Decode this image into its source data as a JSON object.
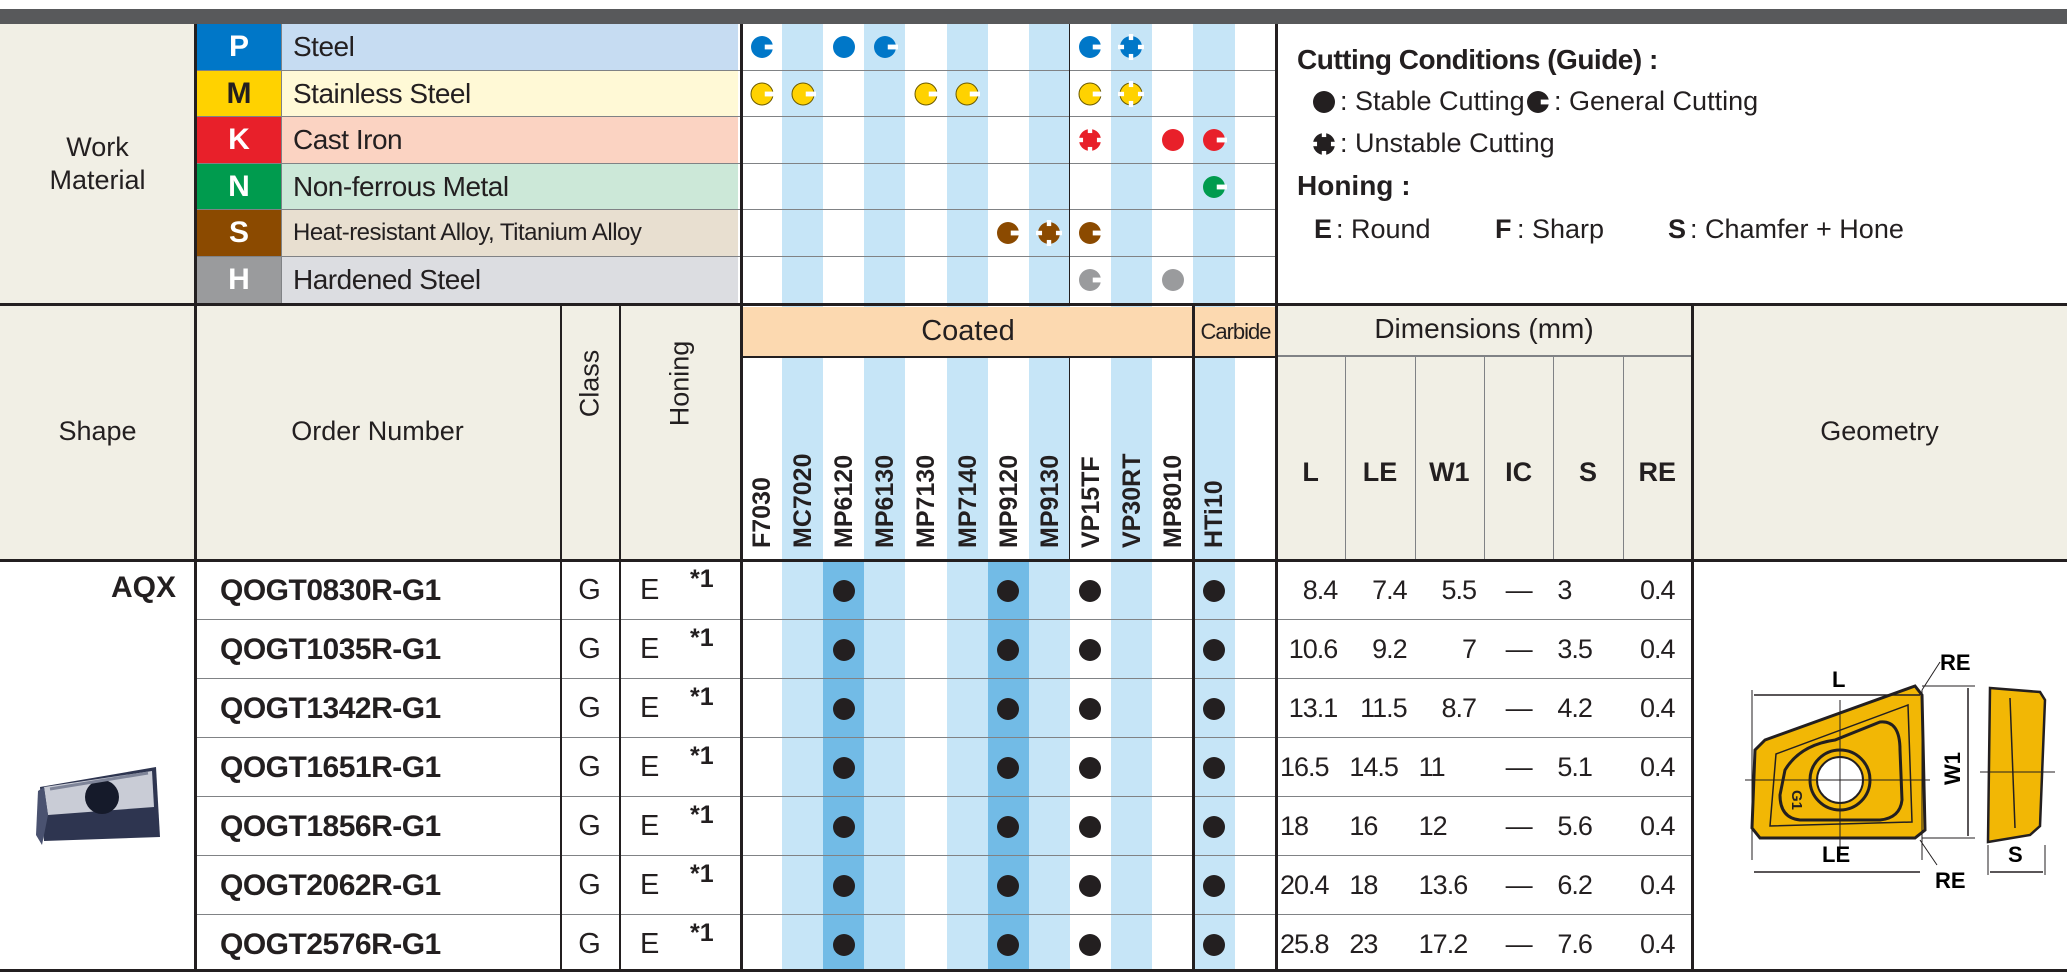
{
  "colors": {
    "stripe": "#c6e5f7",
    "highlight": "#72bbe6",
    "header_orange": "#fcd9b0",
    "cream": "#f1efe5",
    "insert_gold": "#f2b705"
  },
  "work_material": {
    "label_line1": "Work",
    "label_line2": "Material",
    "rows": [
      {
        "letter": "P",
        "name": "Steel",
        "color": "#0077c8",
        "bg": "#c6dcf2",
        "text_color": "#ffffff",
        "marks": [
          "general",
          "",
          "stable",
          "general",
          "",
          "",
          "",
          "",
          "general",
          "unstable",
          "",
          "",
          ""
        ]
      },
      {
        "letter": "M",
        "name": "Stainless Steel",
        "color": "#ffd200",
        "bg": "#fff9d6",
        "text_color": "#231f20",
        "marks": [
          "general",
          "general",
          "",
          "",
          "general",
          "general",
          "",
          "",
          "general",
          "unstable",
          "",
          "",
          ""
        ]
      },
      {
        "letter": "K",
        "name": "Cast Iron",
        "color": "#e8202a",
        "bg": "#fbd3c2",
        "text_color": "#ffffff",
        "marks": [
          "",
          "",
          "",
          "",
          "",
          "",
          "",
          "",
          "unstable",
          "",
          "stable",
          "general",
          ""
        ]
      },
      {
        "letter": "N",
        "name": "Non-ferrous Metal",
        "color": "#009b4e",
        "bg": "#cce8d8",
        "text_color": "#ffffff",
        "marks": [
          "",
          "",
          "",
          "",
          "",
          "",
          "",
          "",
          "",
          "",
          "",
          "general",
          ""
        ]
      },
      {
        "letter": "S",
        "name": "Heat-resistant Alloy, Titanium Alloy",
        "color": "#8b4a00",
        "bg": "#e8dfd0",
        "text_color": "#ffffff",
        "marks": [
          "",
          "",
          "",
          "",
          "",
          "",
          "general",
          "unstable",
          "general",
          "",
          "",
          "",
          ""
        ]
      },
      {
        "letter": "H",
        "name": "Hardened Steel",
        "color": "#9a9b9d",
        "bg": "#dcdde1",
        "text_color": "#ffffff",
        "marks": [
          "",
          "",
          "",
          "",
          "",
          "",
          "",
          "",
          "general",
          "",
          "stable",
          "",
          ""
        ]
      }
    ]
  },
  "legend": {
    "title": "Cutting Conditions (Guide) :",
    "stable": ": Stable Cutting",
    "general": ": General Cutting",
    "unstable": ": Unstable Cutting",
    "honing_title": "Honing :",
    "honing": [
      {
        "code": "E",
        "label": ": Round"
      },
      {
        "code": "F",
        "label": ": Sharp"
      },
      {
        "code": "S",
        "label": ": Chamfer + Hone"
      }
    ]
  },
  "header": {
    "shape": "Shape",
    "order_number": "Order Number",
    "class": "Class",
    "honing": "Honing",
    "coated": "Coated",
    "carbide": "Carbide",
    "dimensions": "Dimensions (mm)",
    "geometry": "Geometry",
    "dim_cols": [
      "L",
      "LE",
      "W1",
      "IC",
      "S",
      "RE"
    ]
  },
  "grades": [
    "F7030",
    "MC7020",
    "MP6120",
    "MP6130",
    "MP7130",
    "MP7140",
    "MP9120",
    "MP9130",
    "VP15TF",
    "VP30RT",
    "MP8010",
    "HTi10",
    ""
  ],
  "shape_name": "AQX",
  "products": [
    {
      "order": "QOGT0830R-G1",
      "class": "G",
      "honing": "E",
      "note": "*1",
      "dims": [
        "8.4",
        "7.4",
        "5.5",
        "—",
        "3",
        "0.4"
      ]
    },
    {
      "order": "QOGT1035R-G1",
      "class": "G",
      "honing": "E",
      "note": "*1",
      "dims": [
        "10.6",
        "9.2",
        "7",
        "—",
        "3.5",
        "0.4"
      ]
    },
    {
      "order": "QOGT1342R-G1",
      "class": "G",
      "honing": "E",
      "note": "*1",
      "dims": [
        "13.1",
        "11.5",
        "8.7",
        "—",
        "4.2",
        "0.4"
      ]
    },
    {
      "order": "QOGT1651R-G1",
      "class": "G",
      "honing": "E",
      "note": "*1",
      "dims": [
        "16.5",
        "14.5",
        "11",
        "—",
        "5.1",
        "0.4"
      ]
    },
    {
      "order": "QOGT1856R-G1",
      "class": "G",
      "honing": "E",
      "note": "*1",
      "dims": [
        "18",
        "16",
        "12",
        "—",
        "5.6",
        "0.4"
      ]
    },
    {
      "order": "QOGT2062R-G1",
      "class": "G",
      "honing": "E",
      "note": "*1",
      "dims": [
        "20.4",
        "18",
        "13.6",
        "—",
        "6.2",
        "0.4"
      ]
    },
    {
      "order": "QOGT2576R-G1",
      "class": "G",
      "honing": "E",
      "note": "*1",
      "dims": [
        "25.8",
        "23",
        "17.2",
        "—",
        "7.6",
        "0.4"
      ]
    }
  ],
  "product_grades": [
    "",
    "",
    "stable",
    "",
    "",
    "",
    "stable",
    "",
    "stable",
    "",
    "",
    "stable",
    ""
  ],
  "highlight_grades": [
    "MP6120",
    "MP9120"
  ],
  "geometry_labels": {
    "L": "L",
    "LE": "LE",
    "W1": "W1",
    "RE": "RE",
    "S": "S",
    "mark": "G1"
  }
}
